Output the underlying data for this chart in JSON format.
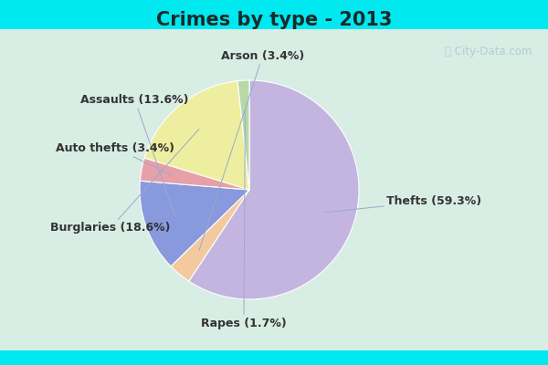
{
  "title": "Crimes by type - 2013",
  "slices": [
    {
      "label": "Thefts (59.3%)",
      "value": 59.3,
      "color": "#c4b4e0"
    },
    {
      "label": "Arson (3.4%)",
      "value": 3.4,
      "color": "#f5c9a0"
    },
    {
      "label": "Assaults (13.6%)",
      "value": 13.6,
      "color": "#8899dd"
    },
    {
      "label": "Auto thefts (3.4%)",
      "value": 3.4,
      "color": "#e8a0a8"
    },
    {
      "label": "Burglaries (18.6%)",
      "value": 18.6,
      "color": "#eeeea0"
    },
    {
      "label": "Rapes (1.7%)",
      "value": 1.7,
      "color": "#b8d8a8"
    }
  ],
  "background_cyan": "#00e8f0",
  "background_inner": "#d8ede4",
  "title_fontsize": 15,
  "label_fontsize": 9,
  "watermark": "ⓘ City-Data.com",
  "startangle": 90,
  "label_coords": {
    "Thefts (59.3%)": [
      1.25,
      -0.1,
      "left"
    ],
    "Arson (3.4%)": [
      0.12,
      1.22,
      "center"
    ],
    "Assaults (13.6%)": [
      -0.55,
      0.82,
      "right"
    ],
    "Auto thefts (3.4%)": [
      -0.68,
      0.38,
      "right"
    ],
    "Burglaries (18.6%)": [
      -0.72,
      -0.35,
      "right"
    ],
    "Rapes (1.7%)": [
      -0.05,
      -1.22,
      "center"
    ]
  }
}
